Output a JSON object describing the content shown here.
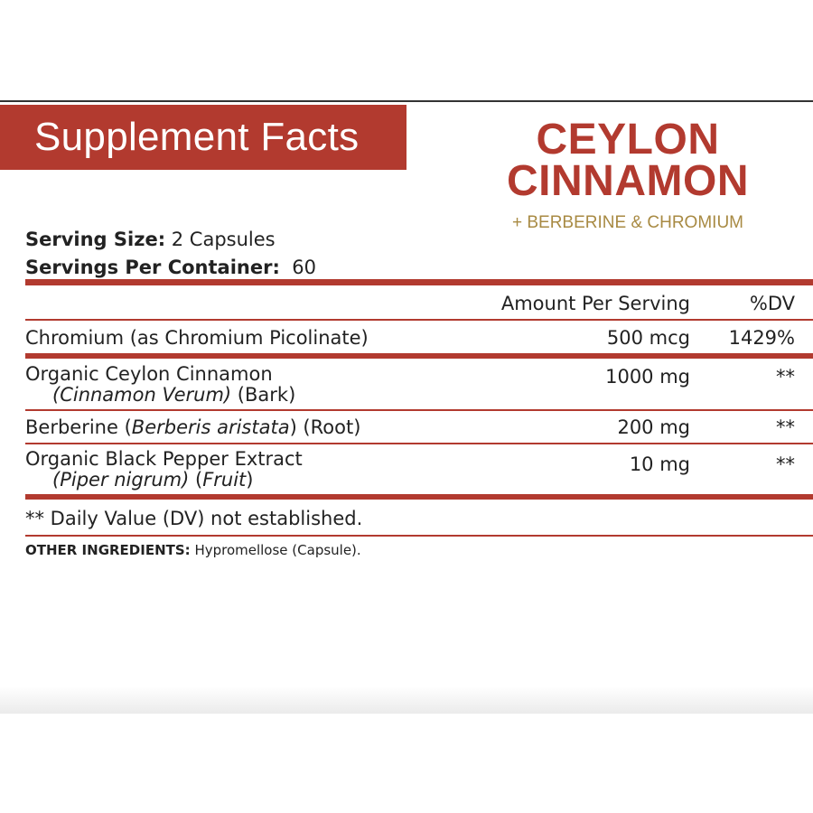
{
  "header": {
    "title": "Supplement Facts",
    "brand_line1": "CEYLON",
    "brand_line2": "CINNAMON",
    "brand_sub": "+ BERBERINE & CHROMIUM"
  },
  "serving": {
    "size_label": "Serving Size:",
    "size_value": " 2 Capsules",
    "per_container_label": "Servings Per Container:",
    "per_container_value": "  60"
  },
  "table": {
    "col_amount": "Amount Per Serving",
    "col_dv": "%DV",
    "rows": [
      {
        "name": "Chromium (as Chromium Picolinate)",
        "amount": "500 mcg",
        "dv": "1429%"
      },
      {
        "name": "Organic Ceylon Cinnamon",
        "sub_italic": "(Cinnamon Verum)",
        "sub_rest": " (Bark)",
        "amount": "1000 mg",
        "dv": "**"
      },
      {
        "name_pre": "Berberine (",
        "name_italic": "Berberis aristata",
        "name_post": ") (Root)",
        "amount": "200 mg",
        "dv": "**"
      },
      {
        "name": "Organic Black Pepper Extract",
        "sub_italic": "(Piper nigrum)",
        "sub_mid": " (",
        "sub_italic2": "Fruit",
        "sub_rest": ")",
        "amount": "10 mg",
        "dv": "**"
      }
    ],
    "footnote": "** Daily Value (DV) not established."
  },
  "other": {
    "label": "OTHER INGREDIENTS:",
    "value": " Hypromellose (Capsule)."
  },
  "colors": {
    "accent": "#b23a2f",
    "gold": "#a88a43"
  }
}
